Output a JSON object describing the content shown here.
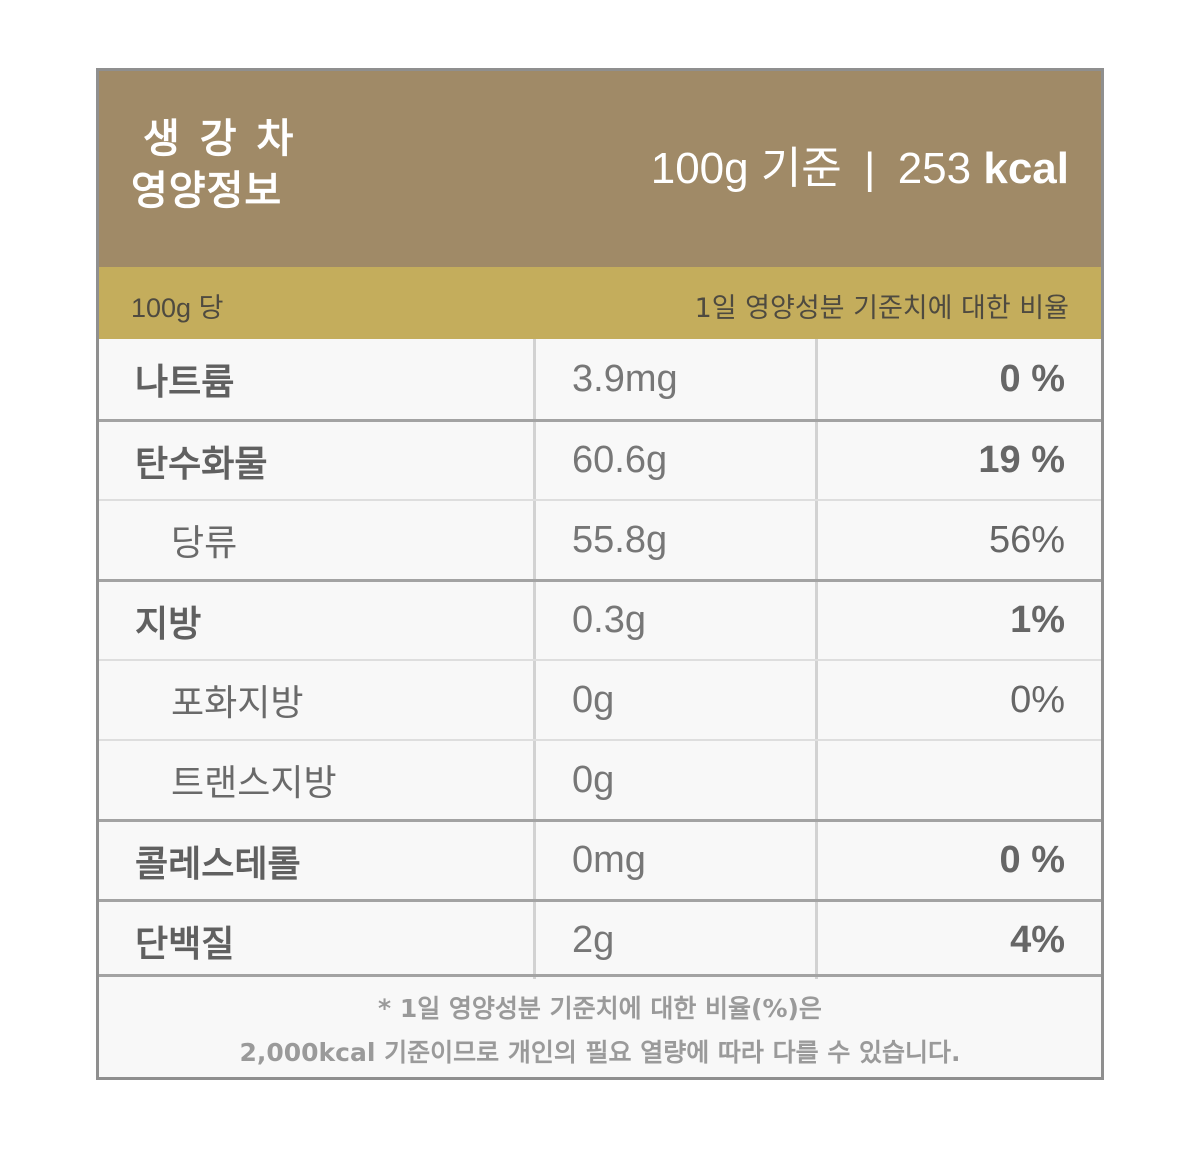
{
  "header": {
    "product_name": "생 강 차",
    "title": "영양정보",
    "serving_basis": "100g 기준",
    "separator": "|",
    "calories_value": "253",
    "calories_unit": "kcal"
  },
  "subheader": {
    "per_label": "100g 당",
    "daily_value_label": "1일 영양성분 기준치에 대한 비율"
  },
  "nutrients": [
    {
      "name": "나트륨",
      "amount": "3.9mg",
      "daily_value": "0 %",
      "level": "major",
      "dv_bold": true
    },
    {
      "name": "탄수화물",
      "amount": "60.6g",
      "daily_value": "19 %",
      "level": "major",
      "dv_bold": true
    },
    {
      "name": "당류",
      "amount": "55.8g",
      "daily_value": "56%",
      "level": "sub",
      "dv_bold": false
    },
    {
      "name": "지방",
      "amount": "0.3g",
      "daily_value": "1%",
      "level": "major",
      "dv_bold": true
    },
    {
      "name": "포화지방",
      "amount": "0g",
      "daily_value": "0%",
      "level": "sub",
      "dv_bold": false
    },
    {
      "name": "트랜스지방",
      "amount": "0g",
      "daily_value": "",
      "level": "sub",
      "dv_bold": false
    },
    {
      "name": "콜레스테롤",
      "amount": "0mg",
      "daily_value": "0 %",
      "level": "major",
      "dv_bold": true
    },
    {
      "name": "단백질",
      "amount": "2g",
      "daily_value": "4%",
      "level": "major",
      "dv_bold": true
    }
  ],
  "footnote": {
    "line1": "* 1일 영양성분 기준치에 대한 비율(%)은",
    "line2": "2,000kcal 기준이므로 개인의 필요 열량에 따라 다를 수 있습니다."
  },
  "colors": {
    "header_bg": "#a08a67",
    "subheader_bg": "#c4ad5c",
    "border": "#8f8f8f",
    "body_bg": "#f8f8f8"
  }
}
